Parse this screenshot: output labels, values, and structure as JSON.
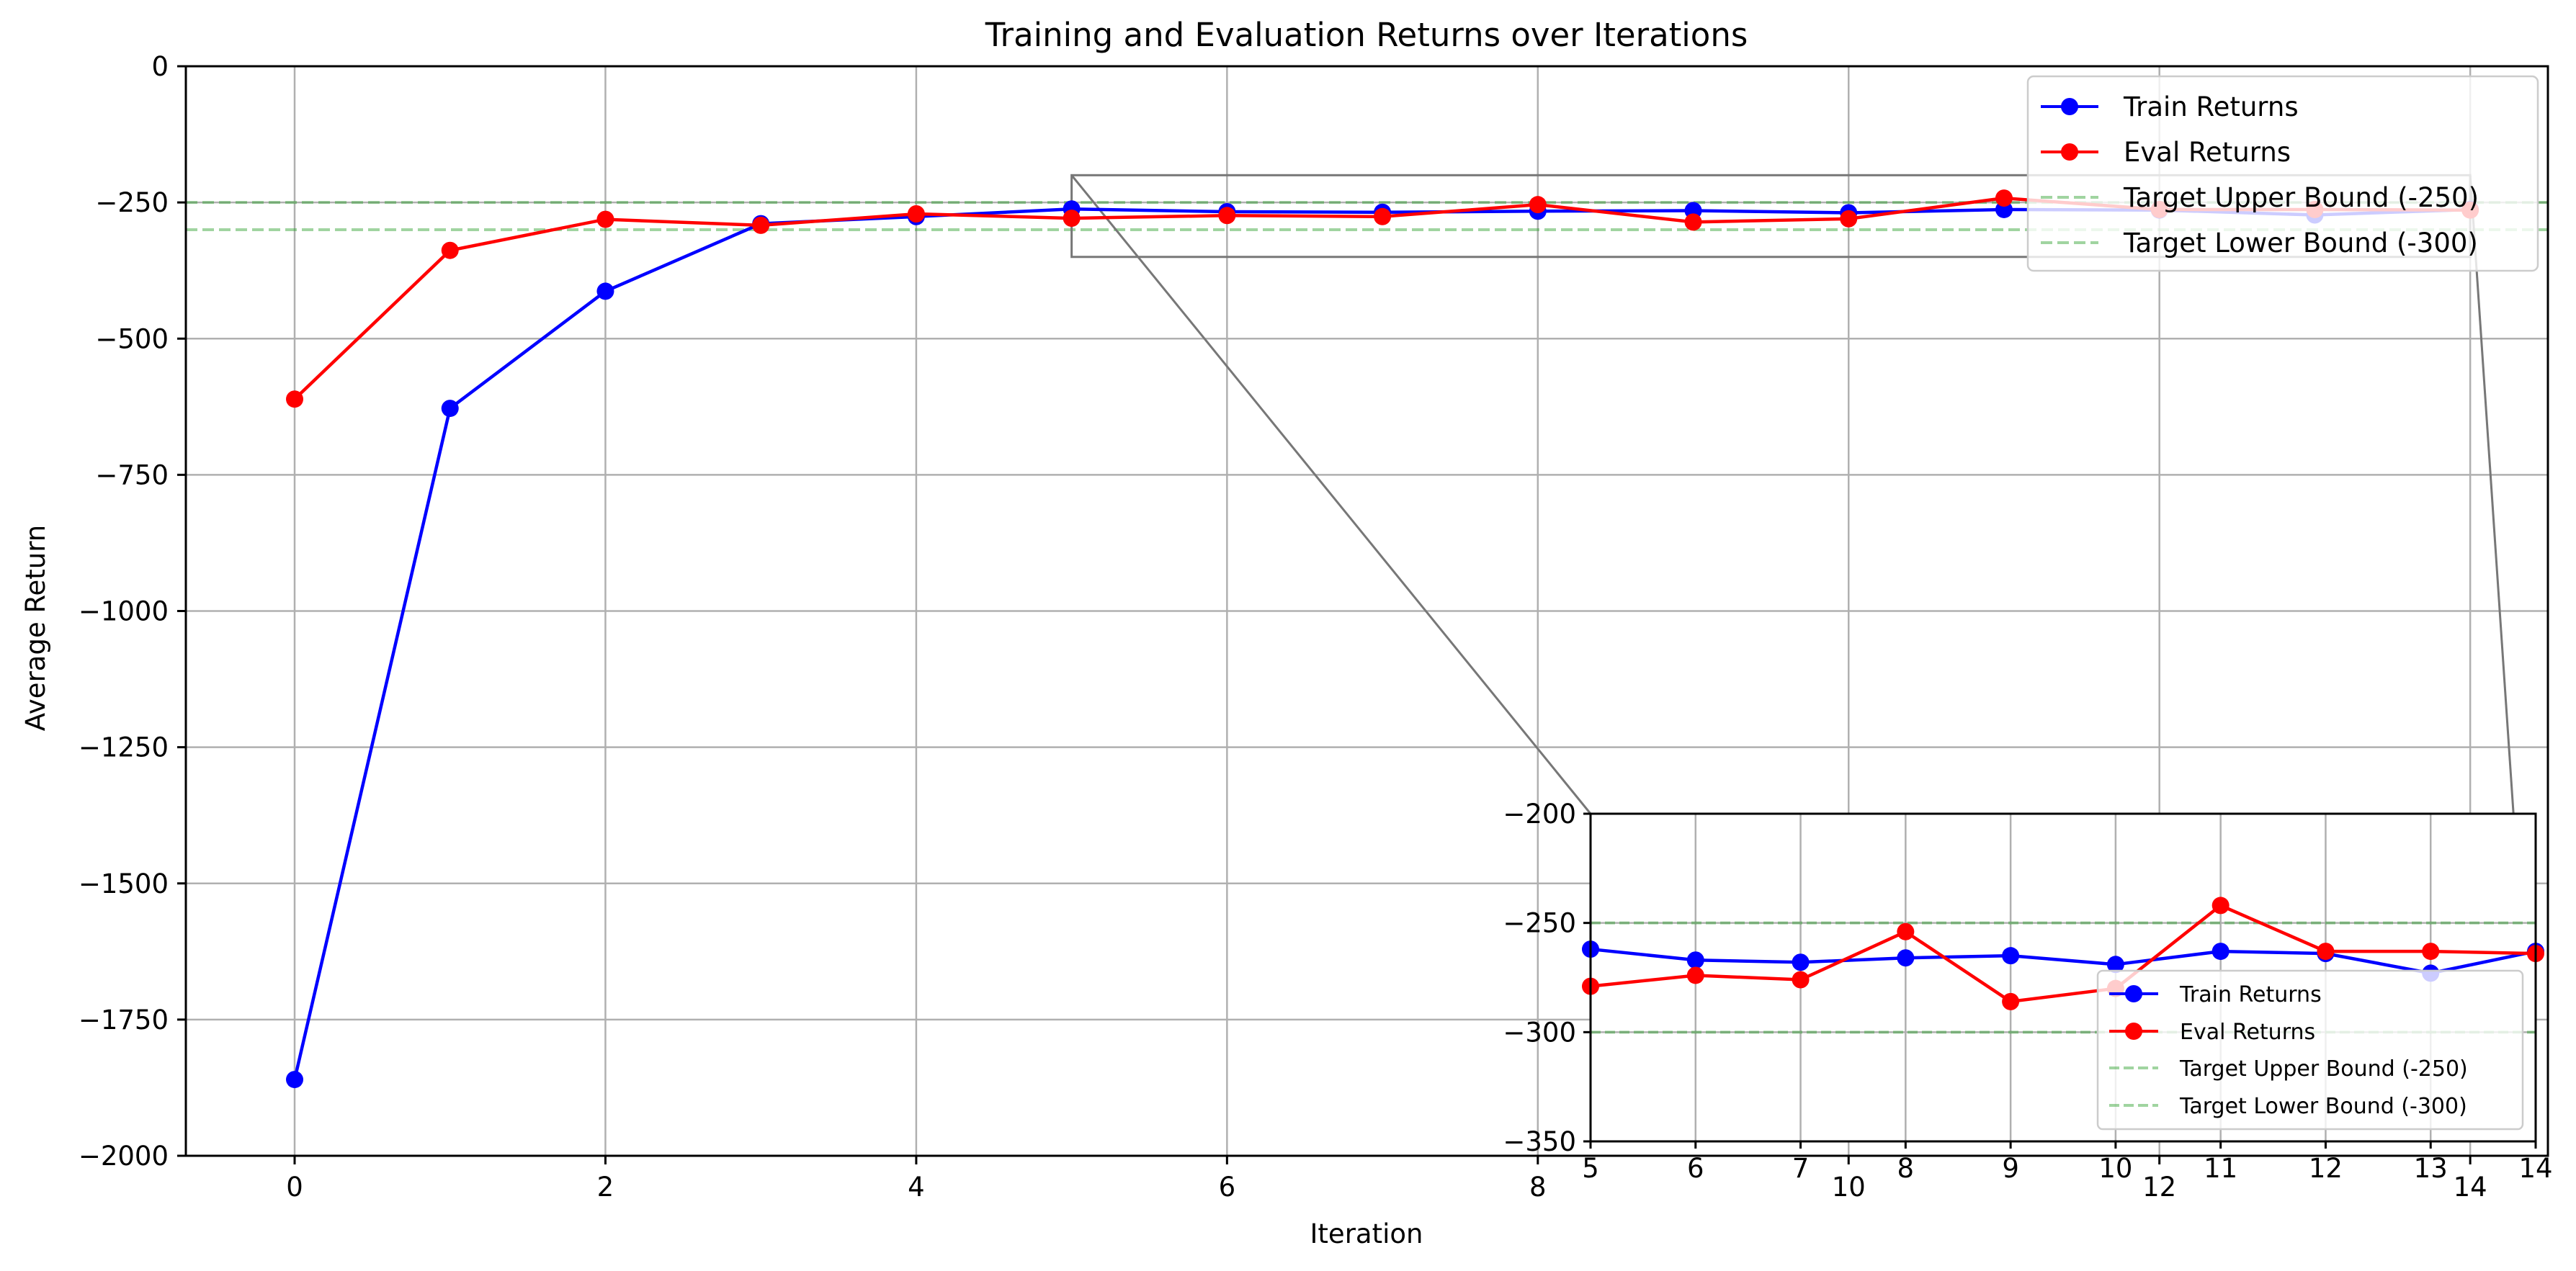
{
  "chart_data": {
    "type": "line",
    "title": "Training and Evaluation Returns over Iterations",
    "xlabel": "Iteration",
    "ylabel": "Average Return",
    "xlim": [
      -0.7,
      14.5
    ],
    "ylim": [
      -2000,
      0
    ],
    "xticks": [
      0,
      2,
      4,
      6,
      8,
      10,
      12,
      14
    ],
    "yticks": [
      0,
      -250,
      -500,
      -750,
      -1000,
      -1250,
      -1500,
      -1750,
      -2000
    ],
    "grid": true,
    "legend_position": "top-right",
    "x": [
      0,
      1,
      2,
      3,
      4,
      5,
      6,
      7,
      8,
      9,
      10,
      11,
      12,
      13,
      14
    ],
    "series": [
      {
        "name": "Train Returns",
        "color": "#0000ff",
        "marker": "circle",
        "values": [
          -1860,
          -628,
          -413,
          -289,
          -276,
          -262,
          -267,
          -268,
          -266,
          -265,
          -269,
          -263,
          -264,
          -273,
          -263
        ]
      },
      {
        "name": "Eval Returns",
        "color": "#ff0000",
        "marker": "circle",
        "values": [
          -611,
          -338,
          -281,
          -292,
          -271,
          -279,
          -274,
          -276,
          -254,
          -286,
          -280,
          -242,
          -263,
          -263,
          -264
        ]
      }
    ],
    "reference_lines": [
      {
        "name": "Target Upper Bound (-250)",
        "y": -250,
        "color": "#2ca02c",
        "style": "dashed"
      },
      {
        "name": "Target Lower Bound (-300)",
        "y": -300,
        "color": "#2ca02c",
        "style": "dashed"
      }
    ],
    "inset": {
      "xlim": [
        5,
        14
      ],
      "ylim": [
        -350,
        -200
      ],
      "xticks": [
        5,
        6,
        7,
        8,
        9,
        10,
        11,
        12,
        13,
        14
      ],
      "yticks": [
        -200,
        -250,
        -300,
        -350
      ],
      "grid": true,
      "legend_position": "lower-right",
      "zoom_region": {
        "x": [
          5,
          14
        ],
        "y": [
          -350,
          -200
        ]
      }
    }
  }
}
